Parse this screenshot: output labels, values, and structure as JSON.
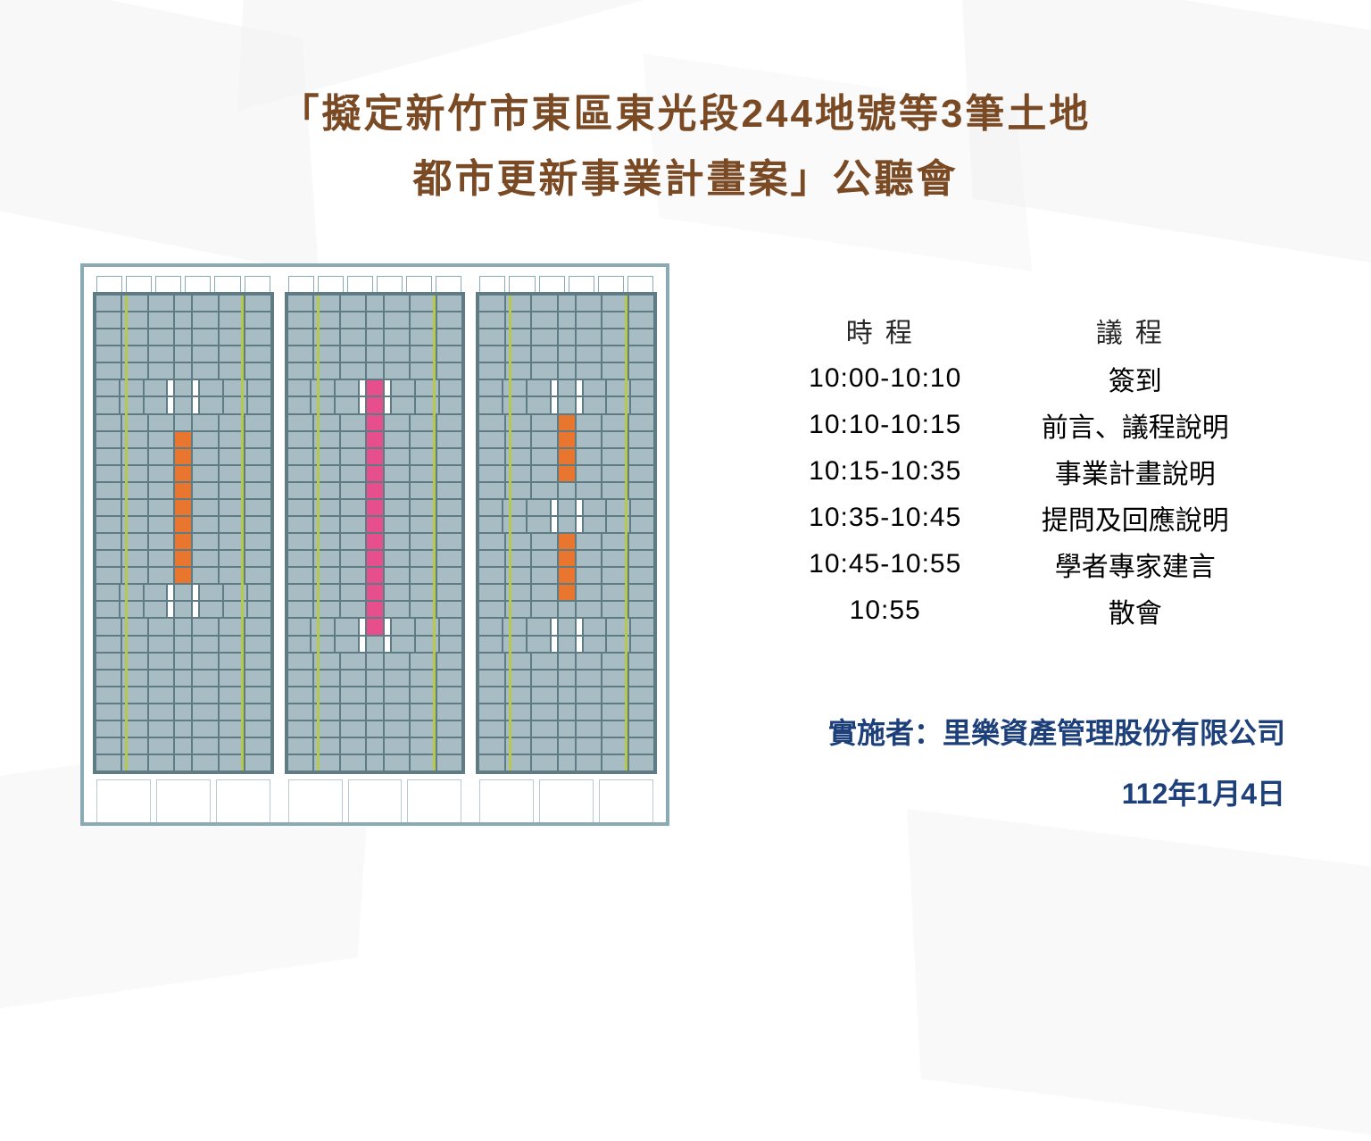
{
  "title": {
    "line1": "「擬定新竹市東區東光段244地號等3筆土地",
    "line2": "都市更新事業計畫案」公聽會",
    "color": "#7a4a25",
    "fontsize": 44
  },
  "schedule": {
    "header_time": "時程",
    "header_item": "議程",
    "rows": [
      {
        "time": "10:00-10:10",
        "item": "簽到"
      },
      {
        "time": "10:10-10:15",
        "item": "前言、議程說明"
      },
      {
        "time": "10:15-10:35",
        "item": "事業計畫說明"
      },
      {
        "time": "10:35-10:45",
        "item": "提問及回應說明"
      },
      {
        "time": "10:45-10:55",
        "item": "學者專家建言"
      },
      {
        "time": "10:55",
        "item": "散會"
      }
    ],
    "text_color": "#262626",
    "fontsize": 30
  },
  "footer": {
    "org_label": "實施者：里樂資產管理股份有限公司",
    "date": "112年1月4日",
    "color": "#1d3f7a",
    "fontsize": 32
  },
  "buildings": {
    "border_color": "#8aaab4",
    "facade_color": "#5f7b83",
    "window_color": "#a7bcc3",
    "vline_color": "#b7c94a",
    "towers": [
      {
        "floors": 28,
        "core_color": "#e9762f",
        "core_rows": [
          8,
          9,
          10,
          11,
          12,
          13,
          14,
          15,
          16
        ],
        "cuts": [
          5,
          6,
          17,
          18
        ]
      },
      {
        "floors": 28,
        "core_color": "#e64f8b",
        "core_rows": [
          5,
          6,
          7,
          8,
          9,
          10,
          11,
          12,
          13,
          14,
          15,
          16,
          17,
          18,
          19
        ],
        "cuts": [
          5,
          6,
          19,
          20
        ]
      },
      {
        "floors": 28,
        "core_color": "#e9762f",
        "core_rows": [
          7,
          8,
          9,
          10,
          14,
          15,
          16,
          17
        ],
        "cuts": [
          5,
          6,
          12,
          13,
          19,
          20
        ]
      }
    ]
  },
  "colors": {
    "background": "#ffffff",
    "shard": "#f2f2f2"
  }
}
